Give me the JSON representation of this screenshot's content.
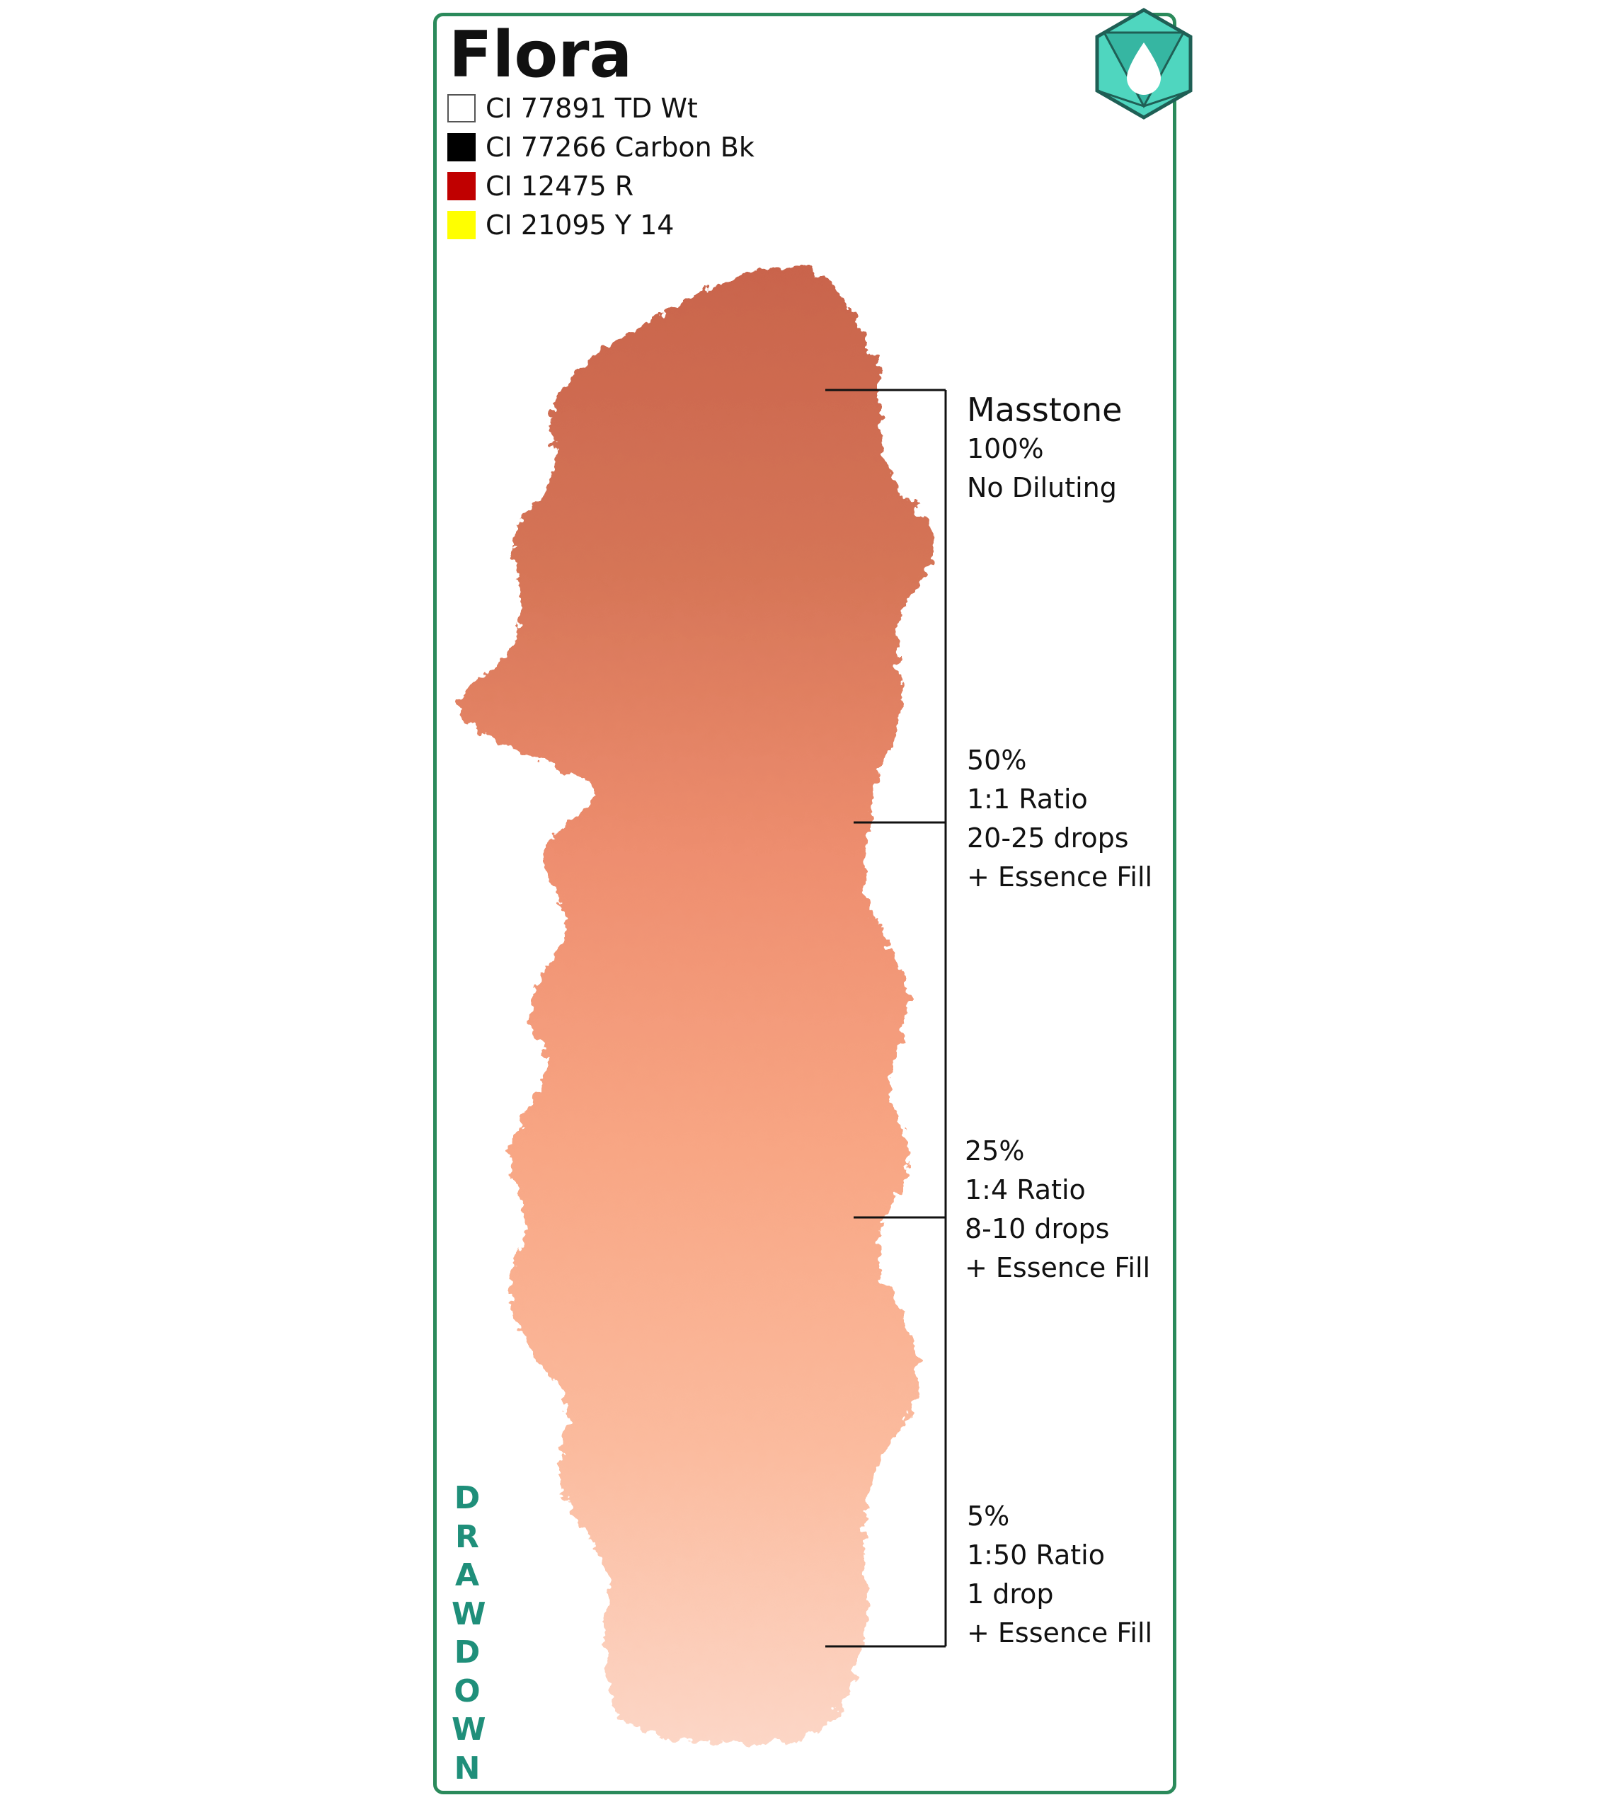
{
  "title": "Flora",
  "pigments": [
    {
      "label": "CI 77891 TD Wt",
      "color": "#ffffff"
    },
    {
      "label": "CI 77266 Carbon Bk",
      "color": "#000000"
    },
    {
      "label": "CI 12475 R",
      "color": "#c00000"
    },
    {
      "label": "CI 21095 Y 14",
      "color": "#ffff00"
    }
  ],
  "emblem_icon": "water-drop-d20-icon",
  "accent_color": "#2b8a5b",
  "drawdown_colors": [
    "#c9644c",
    "#d57456",
    "#ee8e6f",
    "#f8a684",
    "#fbbb9e",
    "#fcd6c6"
  ],
  "dilutions": [
    {
      "lines": [
        "Masstone",
        "100%",
        "No Diluting"
      ]
    },
    {
      "lines": [
        "50%",
        "1:1 Ratio",
        "20-25 drops",
        "+ Essence Fill"
      ]
    },
    {
      "lines": [
        "25%",
        "1:4 Ratio",
        "8-10 drops",
        "+ Essence Fill"
      ]
    },
    {
      "lines": [
        "5%",
        "1:50 Ratio",
        "1 drop",
        "+ Essence Fill"
      ]
    }
  ],
  "vertical_label": "DRAWDOWN"
}
